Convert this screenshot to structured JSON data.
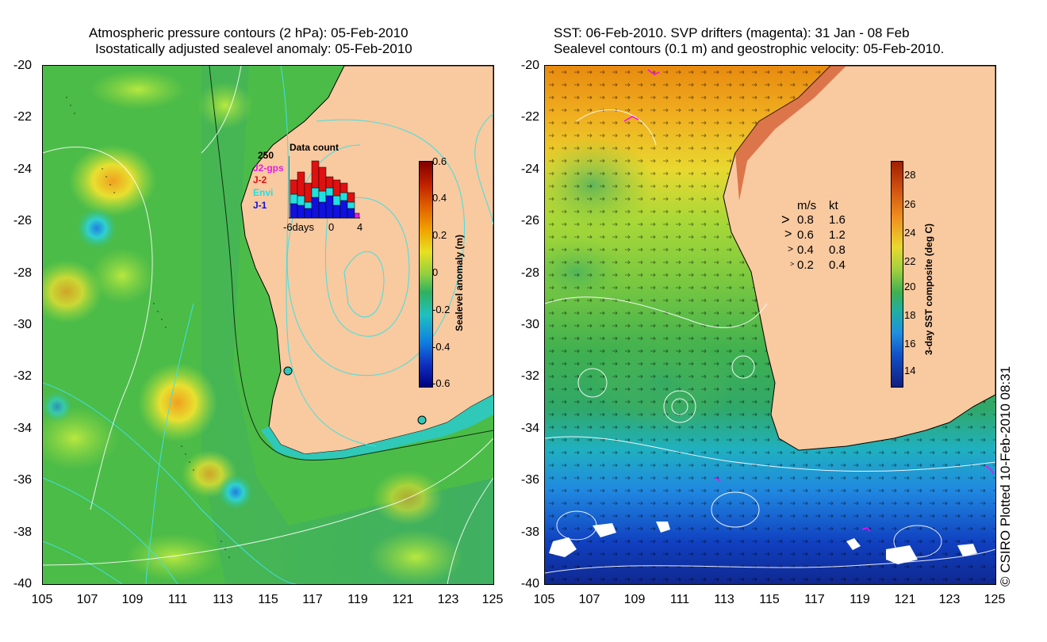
{
  "left_panel": {
    "title_line1": "Atmospheric pressure contours (2 hPa): 05-Feb-2010",
    "title_line2": "Isostatically adjusted sealevel anomaly: 05-Feb-2010",
    "y_ticks": [
      "-20",
      "-22",
      "-24",
      "-26",
      "-28",
      "-30",
      "-32",
      "-34",
      "-36",
      "-38",
      "-40"
    ],
    "x_ticks": [
      "105",
      "107",
      "109",
      "111",
      "113",
      "115",
      "117",
      "119",
      "121",
      "123",
      "125"
    ],
    "colorbar": {
      "title": "Sealevel anomaly (m)",
      "ticks": [
        "0.6",
        "0.4",
        "0.2",
        "0",
        "-0.2",
        "-0.4",
        "-0.6"
      ]
    },
    "histogram": {
      "title": "Data count",
      "y_max_label": "250",
      "x_labels": [
        "-6days",
        "0",
        "4"
      ],
      "series_labels": [
        {
          "text": "J2-gps",
          "color": "#e020e0"
        },
        {
          "text": "J-2",
          "color": "#e01010"
        },
        {
          "text": "Envi",
          "color": "#20e0e0"
        },
        {
          "text": "J-1",
          "color": "#1010e0"
        }
      ]
    }
  },
  "right_panel": {
    "title_line1": "SST: 06-Feb-2010. SVP drifters (magenta): 31 Jan - 08 Feb",
    "title_line2": "Sealevel contours (0.1 m) and geostrophic velocity: 05-Feb-2010.",
    "y_ticks": [
      "-20",
      "-22",
      "-24",
      "-26",
      "-28",
      "-30",
      "-32",
      "-34",
      "-36",
      "-38",
      "-40"
    ],
    "x_ticks": [
      "105",
      "107",
      "109",
      "111",
      "113",
      "115",
      "117",
      "119",
      "121",
      "123",
      "125"
    ],
    "colorbar": {
      "title": "3-day SST composite (deg C)",
      "ticks": [
        "28",
        "26",
        "24",
        "22",
        "20",
        "18",
        "16",
        "14"
      ]
    },
    "velocity_legend": {
      "header_ms": "m/s",
      "header_kt": "kt",
      "rows": [
        {
          "ms": "0.8",
          "kt": "1.6"
        },
        {
          "ms": "0.6",
          "kt": "1.2"
        },
        {
          "ms": "0.4",
          "kt": "0.8"
        },
        {
          "ms": "0.2",
          "kt": "0.4"
        }
      ]
    }
  },
  "credit": "© CSIRO Plotted 10-Feb-2010 08:31",
  "colors": {
    "land": "#f9c9a0",
    "coastline": "#000000",
    "sla_green": "#55c040",
    "contour_cyan": "#40e0e0",
    "contour_white": "#ffffff",
    "drifter": "#ff00ff"
  }
}
